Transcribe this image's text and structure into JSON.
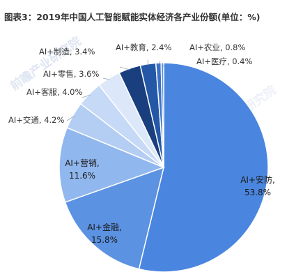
{
  "title": "图表3：2019年中国人工智能赋能实体经济各产业份额(单位：%)",
  "watermark": "前瞻产业研究院",
  "chart_data": {
    "type": "pie",
    "title": "图表3：2019年中国人工智能赋能实体经济各产业份额(单位：%)",
    "unit": "%",
    "slices": [
      {
        "name": "AI+安防",
        "value": 53.8,
        "color": "#4a86df",
        "label": "AI+安防,\n53.8%"
      },
      {
        "name": "AI+金融",
        "value": 15.8,
        "color": "#5b92e2",
        "label": "AI+金融,\n15.8%"
      },
      {
        "name": "AI+营销",
        "value": 11.6,
        "color": "#91b8ee",
        "label": "AI+营销,\n11.6%"
      },
      {
        "name": "AI+交通",
        "value": 4.2,
        "color": "#b4cdf3",
        "label": "AI+交通, 4.2%"
      },
      {
        "name": "AI+客服",
        "value": 4.0,
        "color": "#c6d9f6",
        "label": "AI+客服, 4.0%"
      },
      {
        "name": "AI+零售",
        "value": 3.6,
        "color": "#dce8f9",
        "label": "AI+零售, 3.6%"
      },
      {
        "name": "AI+制造",
        "value": 3.4,
        "color": "#1a3f7e",
        "label": "AI+制造, 3.4%"
      },
      {
        "name": "AI+教育",
        "value": 2.4,
        "color": "#2457a6",
        "label": "AI+教育, 2.4%"
      },
      {
        "name": "AI+农业",
        "value": 0.8,
        "color": "#3b72c9",
        "label": "AI+农业, 0.8%"
      },
      {
        "name": "AI+医疗",
        "value": 0.4,
        "color": "#5d90de",
        "label": "AI+医疗, 0.4%"
      }
    ]
  }
}
